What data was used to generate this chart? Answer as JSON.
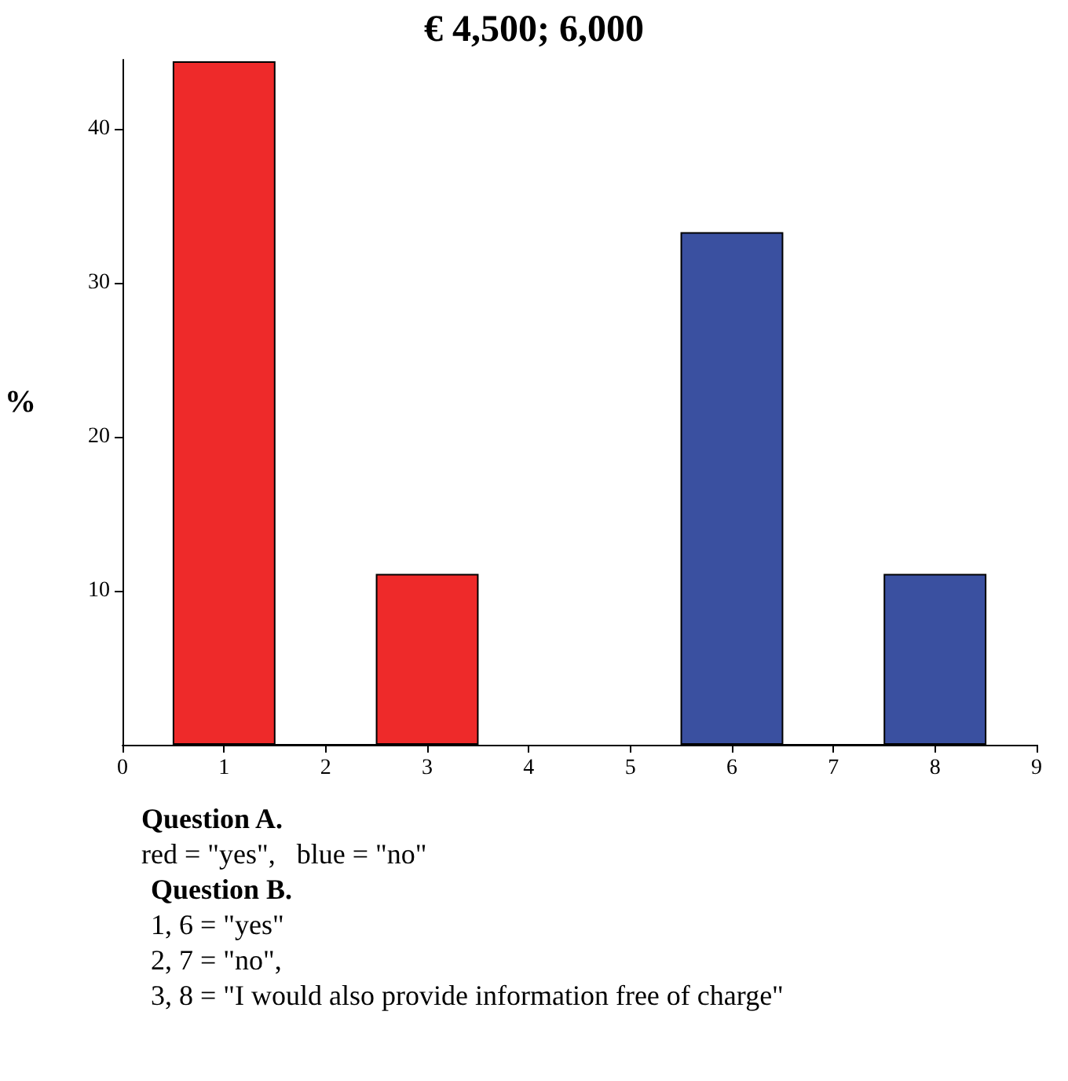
{
  "chart_data": {
    "type": "bar",
    "title": "€ 4,500; 6,000",
    "ylabel": "%",
    "series": [
      {
        "color": "#ee2a2a",
        "x": [
          1,
          2,
          3
        ],
        "values": [
          44.4,
          0,
          11.1
        ]
      },
      {
        "color": "#3a50a0",
        "x": [
          6,
          7,
          8
        ],
        "values": [
          33.3,
          0,
          11.1
        ]
      }
    ],
    "xlim": [
      0,
      9
    ],
    "xticks": [
      0,
      1,
      2,
      3,
      4,
      5,
      6,
      7,
      8,
      9
    ],
    "ylim": [
      0,
      44.5
    ],
    "yticks": [
      10,
      20,
      30,
      40
    ],
    "annotations": [
      "Question A.",
      "red = \"yes\",   blue = \"no\"",
      "Question B.",
      "1, 6 = \"yes\"",
      "2, 7 = \"no\",",
      "3, 8 = \"I would also provide information free of charge\""
    ]
  }
}
